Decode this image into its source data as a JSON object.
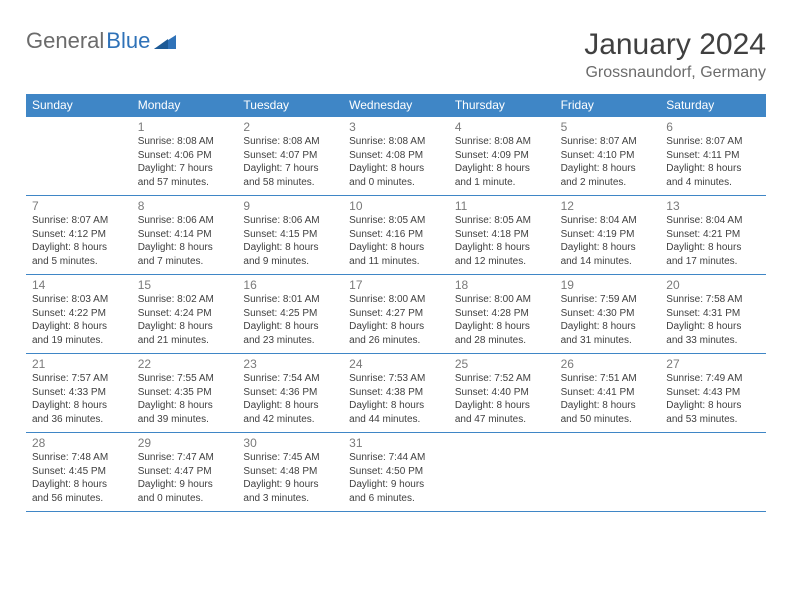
{
  "logo": {
    "part1": "General",
    "part2": "Blue"
  },
  "title": "January 2024",
  "location": "Grossnaundorf, Germany",
  "colors": {
    "header_bg": "#3f86c6",
    "header_text": "#ffffff",
    "divider": "#3f86c6",
    "daynum": "#7a7a7a",
    "body_text": "#404040",
    "logo_gray": "#6b6b6b",
    "logo_blue": "#2f72b8",
    "background": "#ffffff"
  },
  "typography": {
    "title_fontsize": 30,
    "location_fontsize": 16,
    "dayheader_fontsize": 12,
    "daynum_fontsize": 12,
    "body_fontsize": 10
  },
  "day_headers": [
    "Sunday",
    "Monday",
    "Tuesday",
    "Wednesday",
    "Thursday",
    "Friday",
    "Saturday"
  ],
  "weeks": [
    [
      {
        "n": "",
        "sr": "",
        "ss": "",
        "d1": "",
        "d2": ""
      },
      {
        "n": "1",
        "sr": "Sunrise: 8:08 AM",
        "ss": "Sunset: 4:06 PM",
        "d1": "Daylight: 7 hours",
        "d2": "and 57 minutes."
      },
      {
        "n": "2",
        "sr": "Sunrise: 8:08 AM",
        "ss": "Sunset: 4:07 PM",
        "d1": "Daylight: 7 hours",
        "d2": "and 58 minutes."
      },
      {
        "n": "3",
        "sr": "Sunrise: 8:08 AM",
        "ss": "Sunset: 4:08 PM",
        "d1": "Daylight: 8 hours",
        "d2": "and 0 minutes."
      },
      {
        "n": "4",
        "sr": "Sunrise: 8:08 AM",
        "ss": "Sunset: 4:09 PM",
        "d1": "Daylight: 8 hours",
        "d2": "and 1 minute."
      },
      {
        "n": "5",
        "sr": "Sunrise: 8:07 AM",
        "ss": "Sunset: 4:10 PM",
        "d1": "Daylight: 8 hours",
        "d2": "and 2 minutes."
      },
      {
        "n": "6",
        "sr": "Sunrise: 8:07 AM",
        "ss": "Sunset: 4:11 PM",
        "d1": "Daylight: 8 hours",
        "d2": "and 4 minutes."
      }
    ],
    [
      {
        "n": "7",
        "sr": "Sunrise: 8:07 AM",
        "ss": "Sunset: 4:12 PM",
        "d1": "Daylight: 8 hours",
        "d2": "and 5 minutes."
      },
      {
        "n": "8",
        "sr": "Sunrise: 8:06 AM",
        "ss": "Sunset: 4:14 PM",
        "d1": "Daylight: 8 hours",
        "d2": "and 7 minutes."
      },
      {
        "n": "9",
        "sr": "Sunrise: 8:06 AM",
        "ss": "Sunset: 4:15 PM",
        "d1": "Daylight: 8 hours",
        "d2": "and 9 minutes."
      },
      {
        "n": "10",
        "sr": "Sunrise: 8:05 AM",
        "ss": "Sunset: 4:16 PM",
        "d1": "Daylight: 8 hours",
        "d2": "and 11 minutes."
      },
      {
        "n": "11",
        "sr": "Sunrise: 8:05 AM",
        "ss": "Sunset: 4:18 PM",
        "d1": "Daylight: 8 hours",
        "d2": "and 12 minutes."
      },
      {
        "n": "12",
        "sr": "Sunrise: 8:04 AM",
        "ss": "Sunset: 4:19 PM",
        "d1": "Daylight: 8 hours",
        "d2": "and 14 minutes."
      },
      {
        "n": "13",
        "sr": "Sunrise: 8:04 AM",
        "ss": "Sunset: 4:21 PM",
        "d1": "Daylight: 8 hours",
        "d2": "and 17 minutes."
      }
    ],
    [
      {
        "n": "14",
        "sr": "Sunrise: 8:03 AM",
        "ss": "Sunset: 4:22 PM",
        "d1": "Daylight: 8 hours",
        "d2": "and 19 minutes."
      },
      {
        "n": "15",
        "sr": "Sunrise: 8:02 AM",
        "ss": "Sunset: 4:24 PM",
        "d1": "Daylight: 8 hours",
        "d2": "and 21 minutes."
      },
      {
        "n": "16",
        "sr": "Sunrise: 8:01 AM",
        "ss": "Sunset: 4:25 PM",
        "d1": "Daylight: 8 hours",
        "d2": "and 23 minutes."
      },
      {
        "n": "17",
        "sr": "Sunrise: 8:00 AM",
        "ss": "Sunset: 4:27 PM",
        "d1": "Daylight: 8 hours",
        "d2": "and 26 minutes."
      },
      {
        "n": "18",
        "sr": "Sunrise: 8:00 AM",
        "ss": "Sunset: 4:28 PM",
        "d1": "Daylight: 8 hours",
        "d2": "and 28 minutes."
      },
      {
        "n": "19",
        "sr": "Sunrise: 7:59 AM",
        "ss": "Sunset: 4:30 PM",
        "d1": "Daylight: 8 hours",
        "d2": "and 31 minutes."
      },
      {
        "n": "20",
        "sr": "Sunrise: 7:58 AM",
        "ss": "Sunset: 4:31 PM",
        "d1": "Daylight: 8 hours",
        "d2": "and 33 minutes."
      }
    ],
    [
      {
        "n": "21",
        "sr": "Sunrise: 7:57 AM",
        "ss": "Sunset: 4:33 PM",
        "d1": "Daylight: 8 hours",
        "d2": "and 36 minutes."
      },
      {
        "n": "22",
        "sr": "Sunrise: 7:55 AM",
        "ss": "Sunset: 4:35 PM",
        "d1": "Daylight: 8 hours",
        "d2": "and 39 minutes."
      },
      {
        "n": "23",
        "sr": "Sunrise: 7:54 AM",
        "ss": "Sunset: 4:36 PM",
        "d1": "Daylight: 8 hours",
        "d2": "and 42 minutes."
      },
      {
        "n": "24",
        "sr": "Sunrise: 7:53 AM",
        "ss": "Sunset: 4:38 PM",
        "d1": "Daylight: 8 hours",
        "d2": "and 44 minutes."
      },
      {
        "n": "25",
        "sr": "Sunrise: 7:52 AM",
        "ss": "Sunset: 4:40 PM",
        "d1": "Daylight: 8 hours",
        "d2": "and 47 minutes."
      },
      {
        "n": "26",
        "sr": "Sunrise: 7:51 AM",
        "ss": "Sunset: 4:41 PM",
        "d1": "Daylight: 8 hours",
        "d2": "and 50 minutes."
      },
      {
        "n": "27",
        "sr": "Sunrise: 7:49 AM",
        "ss": "Sunset: 4:43 PM",
        "d1": "Daylight: 8 hours",
        "d2": "and 53 minutes."
      }
    ],
    [
      {
        "n": "28",
        "sr": "Sunrise: 7:48 AM",
        "ss": "Sunset: 4:45 PM",
        "d1": "Daylight: 8 hours",
        "d2": "and 56 minutes."
      },
      {
        "n": "29",
        "sr": "Sunrise: 7:47 AM",
        "ss": "Sunset: 4:47 PM",
        "d1": "Daylight: 9 hours",
        "d2": "and 0 minutes."
      },
      {
        "n": "30",
        "sr": "Sunrise: 7:45 AM",
        "ss": "Sunset: 4:48 PM",
        "d1": "Daylight: 9 hours",
        "d2": "and 3 minutes."
      },
      {
        "n": "31",
        "sr": "Sunrise: 7:44 AM",
        "ss": "Sunset: 4:50 PM",
        "d1": "Daylight: 9 hours",
        "d2": "and 6 minutes."
      },
      {
        "n": "",
        "sr": "",
        "ss": "",
        "d1": "",
        "d2": ""
      },
      {
        "n": "",
        "sr": "",
        "ss": "",
        "d1": "",
        "d2": ""
      },
      {
        "n": "",
        "sr": "",
        "ss": "",
        "d1": "",
        "d2": ""
      }
    ]
  ]
}
